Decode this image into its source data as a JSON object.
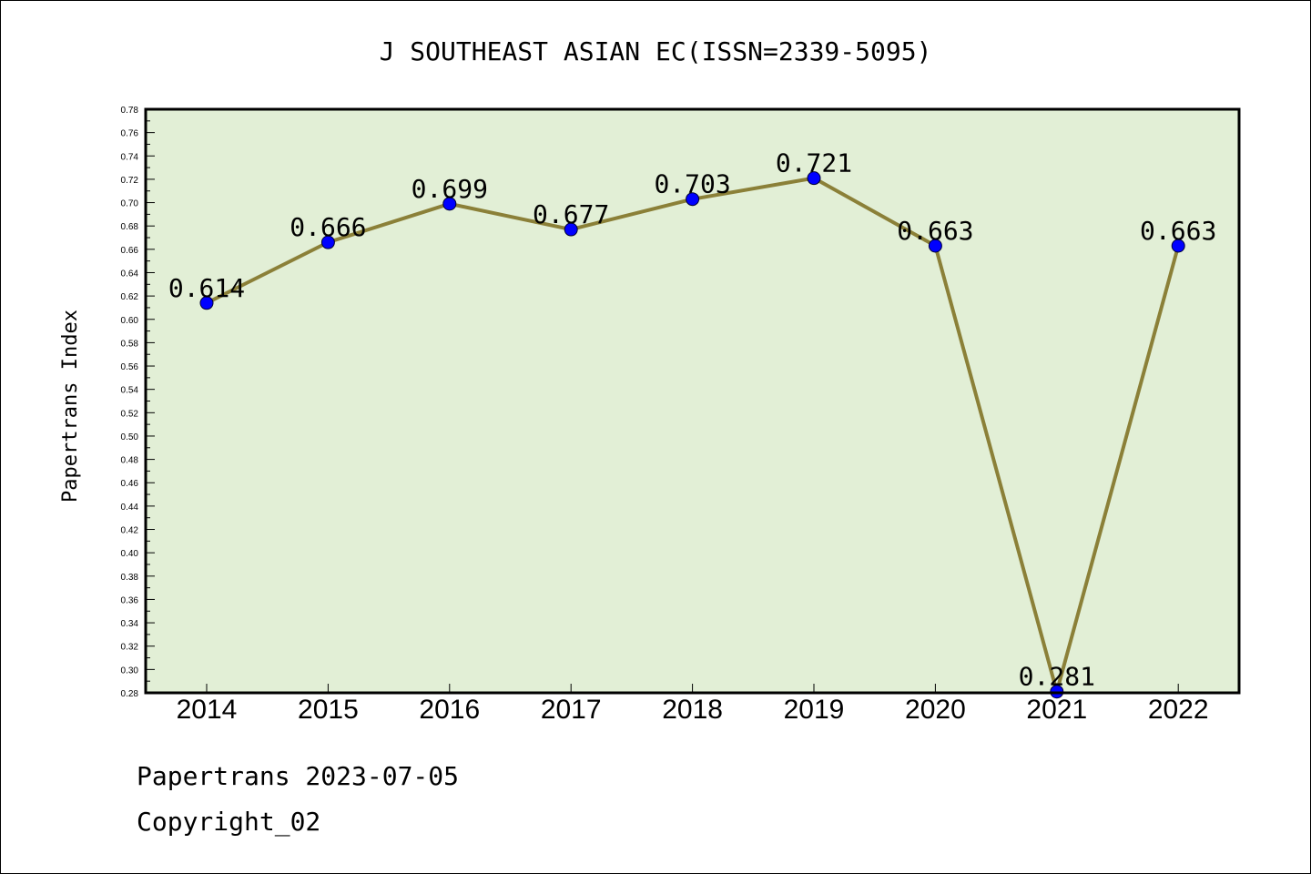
{
  "chart_data": {
    "type": "line",
    "title": "J SOUTHEAST ASIAN EC(ISSN=2339-5095)",
    "xlabel": "",
    "ylabel": "Papertrans Index",
    "categories": [
      "2014",
      "2015",
      "2016",
      "2017",
      "2018",
      "2019",
      "2020",
      "2021",
      "2022"
    ],
    "series": [
      {
        "values": [
          0.614,
          0.666,
          0.699,
          0.677,
          0.703,
          0.721,
          0.663,
          0.281,
          0.663
        ]
      }
    ],
    "data_labels": [
      "0.614",
      "0.666",
      "0.699",
      "0.677",
      "0.703",
      "0.721",
      "0.663",
      "0.281",
      "0.663"
    ],
    "ylim": [
      0.28,
      0.78
    ],
    "yticks": [
      "0.28",
      "0.30",
      "0.32",
      "0.34",
      "0.36",
      "0.38",
      "0.40",
      "0.42",
      "0.44",
      "0.46",
      "0.48",
      "0.50",
      "0.52",
      "0.54",
      "0.56",
      "0.58",
      "0.60",
      "0.62",
      "0.64",
      "0.66",
      "0.68",
      "0.70",
      "0.72",
      "0.74",
      "0.76",
      "0.78"
    ],
    "grid": false,
    "colors": {
      "plot_background": "#e2efd6",
      "line": "#8b8038",
      "marker": "#0000ff"
    }
  },
  "footer": {
    "line1": "Papertrans 2023-07-05",
    "line2": "Copyright_02"
  }
}
